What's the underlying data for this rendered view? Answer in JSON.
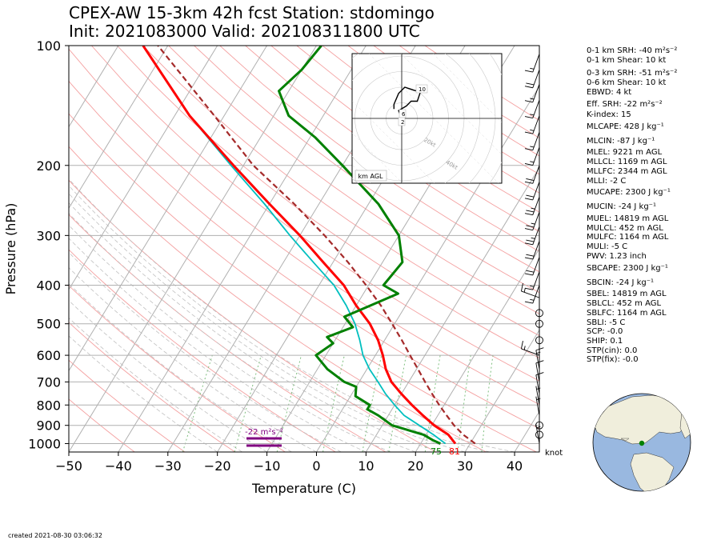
{
  "title_line1": "CPEX-AW 15-3km  42h fcst  Station: stdomingo",
  "title_line2": "Init: 2021083000  Valid: 2021083118​00 UTC",
  "created": "created 2021-08-30 03:06:32",
  "indices": [
    "0-1 km SRH: -40 m²s⁻²",
    "0-1 km Shear: 10 kt",
    "0-3 km SRH: -51 m²s⁻²",
    "0-6 km Shear: 10 kt",
    "EBWD: 4 kt",
    "Eff. SRH: -22 m²s⁻²",
    "K-index: 15",
    "MLCAPE: 428 J kg⁻¹",
    "MLCIN: -87 J kg⁻¹",
    "MLEL: 9221 m AGL",
    "MLLCL: 1169 m AGL",
    "MLLFC: 2344 m AGL",
    "MLLI: -2 C",
    "MUCAPE: 2300 J kg⁻¹",
    "MUCIN: -24 J kg⁻¹",
    "MUEL: 14819 m AGL",
    "MULCL: 452 m AGL",
    "MULFC: 1164 m AGL",
    "MULI: -5 C",
    "PWV: 1.23 inch",
    "SBCAPE: 2300 J kg⁻¹",
    "SBCIN: -24 J kg⁻¹",
    "SBEL: 14819 m AGL",
    "SBLCL: 452 m AGL",
    "SBLFC: 1164 m AGL",
    "SBLI: -5 C",
    "SCP: -0.0",
    "SHIP: 0.1",
    "STP(cin): 0.0",
    "STP(fix): -0.0"
  ],
  "colors": {
    "temperature": "#ff0000",
    "dewpoint": "#008000",
    "wetbulb": "#00bfbf",
    "parcel": "#a52a2a",
    "srh": "#800080",
    "isotherm": "#b0b0b0",
    "dry_adiabat": "#f4a0a0",
    "moist_adiabat": "#c0c0c0",
    "mixing_ratio": "#80c080",
    "globe_ocean": "#99b8e0",
    "globe_land": "#f0eedc"
  },
  "chart_data": {
    "type": "skew-t",
    "xlabel": "Temperature (C)",
    "ylabel": "Pressure (hPa)",
    "xlim": [
      -50,
      45
    ],
    "ylim": [
      1050,
      100
    ],
    "x_ticks": [
      -50,
      -40,
      -30,
      -20,
      -10,
      0,
      10,
      20,
      30,
      40
    ],
    "y_ticks": [
      100,
      200,
      300,
      400,
      500,
      600,
      700,
      800,
      900,
      1000
    ],
    "y_scale": "log",
    "grid": true,
    "series": [
      {
        "key": "temperature",
        "points": [
          [
            1000,
            27
          ],
          [
            950,
            24.5
          ],
          [
            900,
            20.5
          ],
          [
            850,
            17
          ],
          [
            800,
            13.5
          ],
          [
            750,
            10
          ],
          [
            700,
            6.5
          ],
          [
            650,
            3.8
          ],
          [
            600,
            1.5
          ],
          [
            550,
            -1.3
          ],
          [
            500,
            -5
          ],
          [
            450,
            -10
          ],
          [
            400,
            -15
          ],
          [
            350,
            -22
          ],
          [
            300,
            -30
          ],
          [
            250,
            -40
          ],
          [
            200,
            -52
          ],
          [
            150,
            -67
          ],
          [
            100,
            -85
          ]
        ]
      },
      {
        "key": "dewpoint",
        "points": [
          [
            1000,
            24
          ],
          [
            980,
            22
          ],
          [
            950,
            19.5
          ],
          [
            900,
            12
          ],
          [
            850,
            8
          ],
          [
            820,
            5
          ],
          [
            800,
            5
          ],
          [
            760,
            1
          ],
          [
            720,
            0
          ],
          [
            700,
            -3
          ],
          [
            650,
            -8
          ],
          [
            600,
            -12
          ],
          [
            560,
            -10
          ],
          [
            540,
            -12
          ],
          [
            510,
            -8
          ],
          [
            480,
            -11
          ],
          [
            420,
            -3
          ],
          [
            400,
            -7
          ],
          [
            350,
            -6
          ],
          [
            300,
            -10
          ],
          [
            250,
            -18
          ],
          [
            200,
            -30
          ],
          [
            170,
            -39
          ],
          [
            150,
            -47
          ],
          [
            130,
            -52
          ],
          [
            115,
            -50
          ],
          [
            100,
            -49
          ]
        ]
      },
      {
        "key": "wetbulb",
        "points": [
          [
            1000,
            25
          ],
          [
            950,
            21.5
          ],
          [
            900,
            17.5
          ],
          [
            850,
            13.2
          ],
          [
            800,
            10
          ],
          [
            750,
            6.8
          ],
          [
            700,
            3.8
          ],
          [
            650,
            0.5
          ],
          [
            600,
            -2.5
          ],
          [
            550,
            -5
          ],
          [
            500,
            -8
          ],
          [
            450,
            -12
          ],
          [
            400,
            -17
          ],
          [
            350,
            -24
          ],
          [
            300,
            -32
          ],
          [
            250,
            -41
          ],
          [
            200,
            -52.5
          ],
          [
            150,
            -67
          ],
          [
            100,
            -85
          ]
        ]
      },
      {
        "key": "parcel",
        "points": [
          [
            1000,
            31
          ],
          [
            950,
            27.5
          ],
          [
            900,
            24.5
          ],
          [
            850,
            21.8
          ],
          [
            800,
            19
          ],
          [
            750,
            16.2
          ],
          [
            700,
            13.3
          ],
          [
            650,
            10.3
          ],
          [
            600,
            7
          ],
          [
            550,
            3.5
          ],
          [
            500,
            -0.5
          ],
          [
            450,
            -5
          ],
          [
            400,
            -10.5
          ],
          [
            350,
            -17
          ],
          [
            300,
            -25
          ],
          [
            250,
            -35
          ],
          [
            200,
            -48
          ],
          [
            150,
            -62
          ],
          [
            100,
            -82
          ]
        ]
      }
    ],
    "surface_labels": {
      "temperature": "81",
      "dewpoint": "75"
    },
    "srh_label": "-22 m²s⁻²",
    "hodograph": {
      "label": "km AGL",
      "ring_labels": [
        "20kt",
        "40kt",
        "60kt",
        "80kt"
      ],
      "height_labels": [
        "2",
        "6",
        "10"
      ],
      "points": [
        [
          0,
          -2
        ],
        [
          0,
          0
        ],
        [
          -2,
          5
        ],
        [
          3,
          8
        ],
        [
          6,
          11
        ],
        [
          10,
          11
        ],
        [
          12,
          17
        ],
        [
          8,
          18
        ],
        [
          2,
          20
        ],
        [
          -2,
          16
        ],
        [
          -5,
          9
        ],
        [
          -5,
          6
        ]
      ]
    },
    "barb_unit": "knot",
    "wind_barbs": [
      {
        "p": 1000,
        "speed": 5
      },
      {
        "p": 950,
        "speed": 0
      },
      {
        "p": 900,
        "speed": 0
      },
      {
        "p": 850,
        "speed": 5
      },
      {
        "p": 800,
        "speed": 5
      },
      {
        "p": 750,
        "speed": 10
      },
      {
        "p": 700,
        "speed": 10
      },
      {
        "p": 650,
        "speed": 15
      },
      {
        "p": 600,
        "speed": 15
      },
      {
        "p": 550,
        "speed": 0
      },
      {
        "p": 500,
        "speed": 0
      },
      {
        "p": 470,
        "speed": 0
      },
      {
        "p": 430,
        "speed": 15
      },
      {
        "p": 400,
        "speed": 15
      },
      {
        "p": 370,
        "speed": 15
      },
      {
        "p": 340,
        "speed": 20
      },
      {
        "p": 310,
        "speed": 20
      },
      {
        "p": 285,
        "speed": 25
      },
      {
        "p": 262,
        "speed": 25
      },
      {
        "p": 240,
        "speed": 25
      },
      {
        "p": 220,
        "speed": 20
      },
      {
        "p": 200,
        "speed": 20
      },
      {
        "p": 180,
        "speed": 15
      },
      {
        "p": 165,
        "speed": 15
      },
      {
        "p": 150,
        "speed": 15
      },
      {
        "p": 137,
        "speed": 15
      },
      {
        "p": 125,
        "speed": 15
      },
      {
        "p": 115,
        "speed": 20
      },
      {
        "p": 105,
        "speed": 15
      }
    ]
  }
}
